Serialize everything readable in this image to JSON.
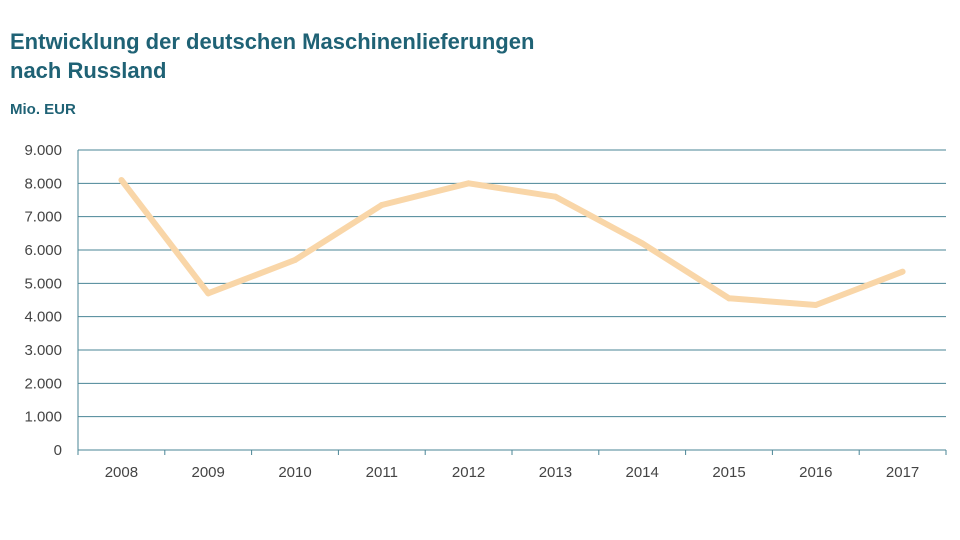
{
  "title_lines": [
    "Entwicklung der deutschen Maschinenlieferungen",
    "nach Russland"
  ],
  "unit_label": "Mio. EUR",
  "colors": {
    "title": "#1f6275",
    "grid": "#4a8596",
    "line": "#f9d6a8"
  },
  "chart_data": {
    "type": "line",
    "title": "Entwicklung der deutschen Maschinenlieferungen nach Russland",
    "ylabel": "Mio. EUR",
    "xlabel": "",
    "categories": [
      "2008",
      "2009",
      "2010",
      "2011",
      "2012",
      "2013",
      "2014",
      "2015",
      "2016",
      "2017"
    ],
    "series": [
      {
        "values": [
          8100,
          4700,
          5700,
          7350,
          8000,
          7600,
          6200,
          4550,
          4350,
          5350
        ]
      }
    ],
    "ylim": [
      0,
      9000
    ],
    "yticks": [
      0,
      1000,
      2000,
      3000,
      4000,
      5000,
      6000,
      7000,
      8000,
      9000
    ],
    "ytick_labels": [
      "0",
      "1.000",
      "2.000",
      "3.000",
      "4.000",
      "5.000",
      "6.000",
      "7.000",
      "8.000",
      "9.000"
    ],
    "grid": true,
    "legend": "none"
  }
}
